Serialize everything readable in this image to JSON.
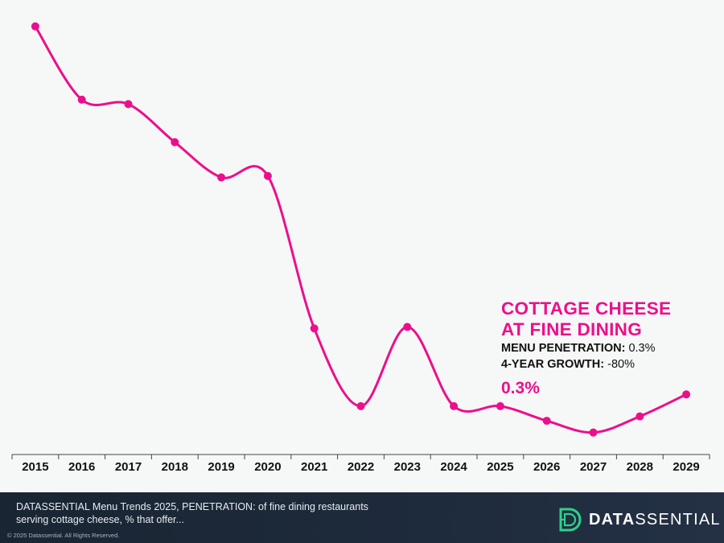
{
  "chart_data": {
    "type": "line",
    "x": [
      "2015",
      "2016",
      "2017",
      "2018",
      "2019",
      "2020",
      "2021",
      "2022",
      "2023",
      "2024",
      "2025",
      "2026",
      "2027",
      "2028",
      "2029"
    ],
    "series": [
      {
        "values": [
          1.46,
          1.21,
          1.195,
          1.065,
          0.945,
          0.95,
          0.43,
          0.165,
          0.435,
          0.165,
          0.165,
          0.115,
          0.075,
          0.13,
          0.205
        ]
      }
    ],
    "ylim": [
      0,
      1.55
    ],
    "grid": false,
    "color": "#ec0f8c"
  },
  "annotation": {
    "title_line1": "COTTAGE CHEESE",
    "title_line2": "AT FINE DINING",
    "penetration_label": "MENU PENETRATION:",
    "penetration_value": "0.3%",
    "growth_label": "4-YEAR GROWTH:",
    "growth_value": "-80%",
    "big_value": "0.3%"
  },
  "footer": {
    "source_text": "DATASSENTIAL Menu Trends 2025, PENETRATION: of fine dining restaurants serving cottage cheese, % that offer...",
    "copyright": "© 2025 Datassential. All Rights Reserved.",
    "logo_text_strong": "DATA",
    "logo_text_light": "SSENTIAL",
    "logo_icon": "datassential-d-icon"
  },
  "colors": {
    "accent": "#ec0f8c",
    "background": "#f6f7f7",
    "footer_bg": "#1e2b3c",
    "logo_green": "#2fd08a"
  }
}
